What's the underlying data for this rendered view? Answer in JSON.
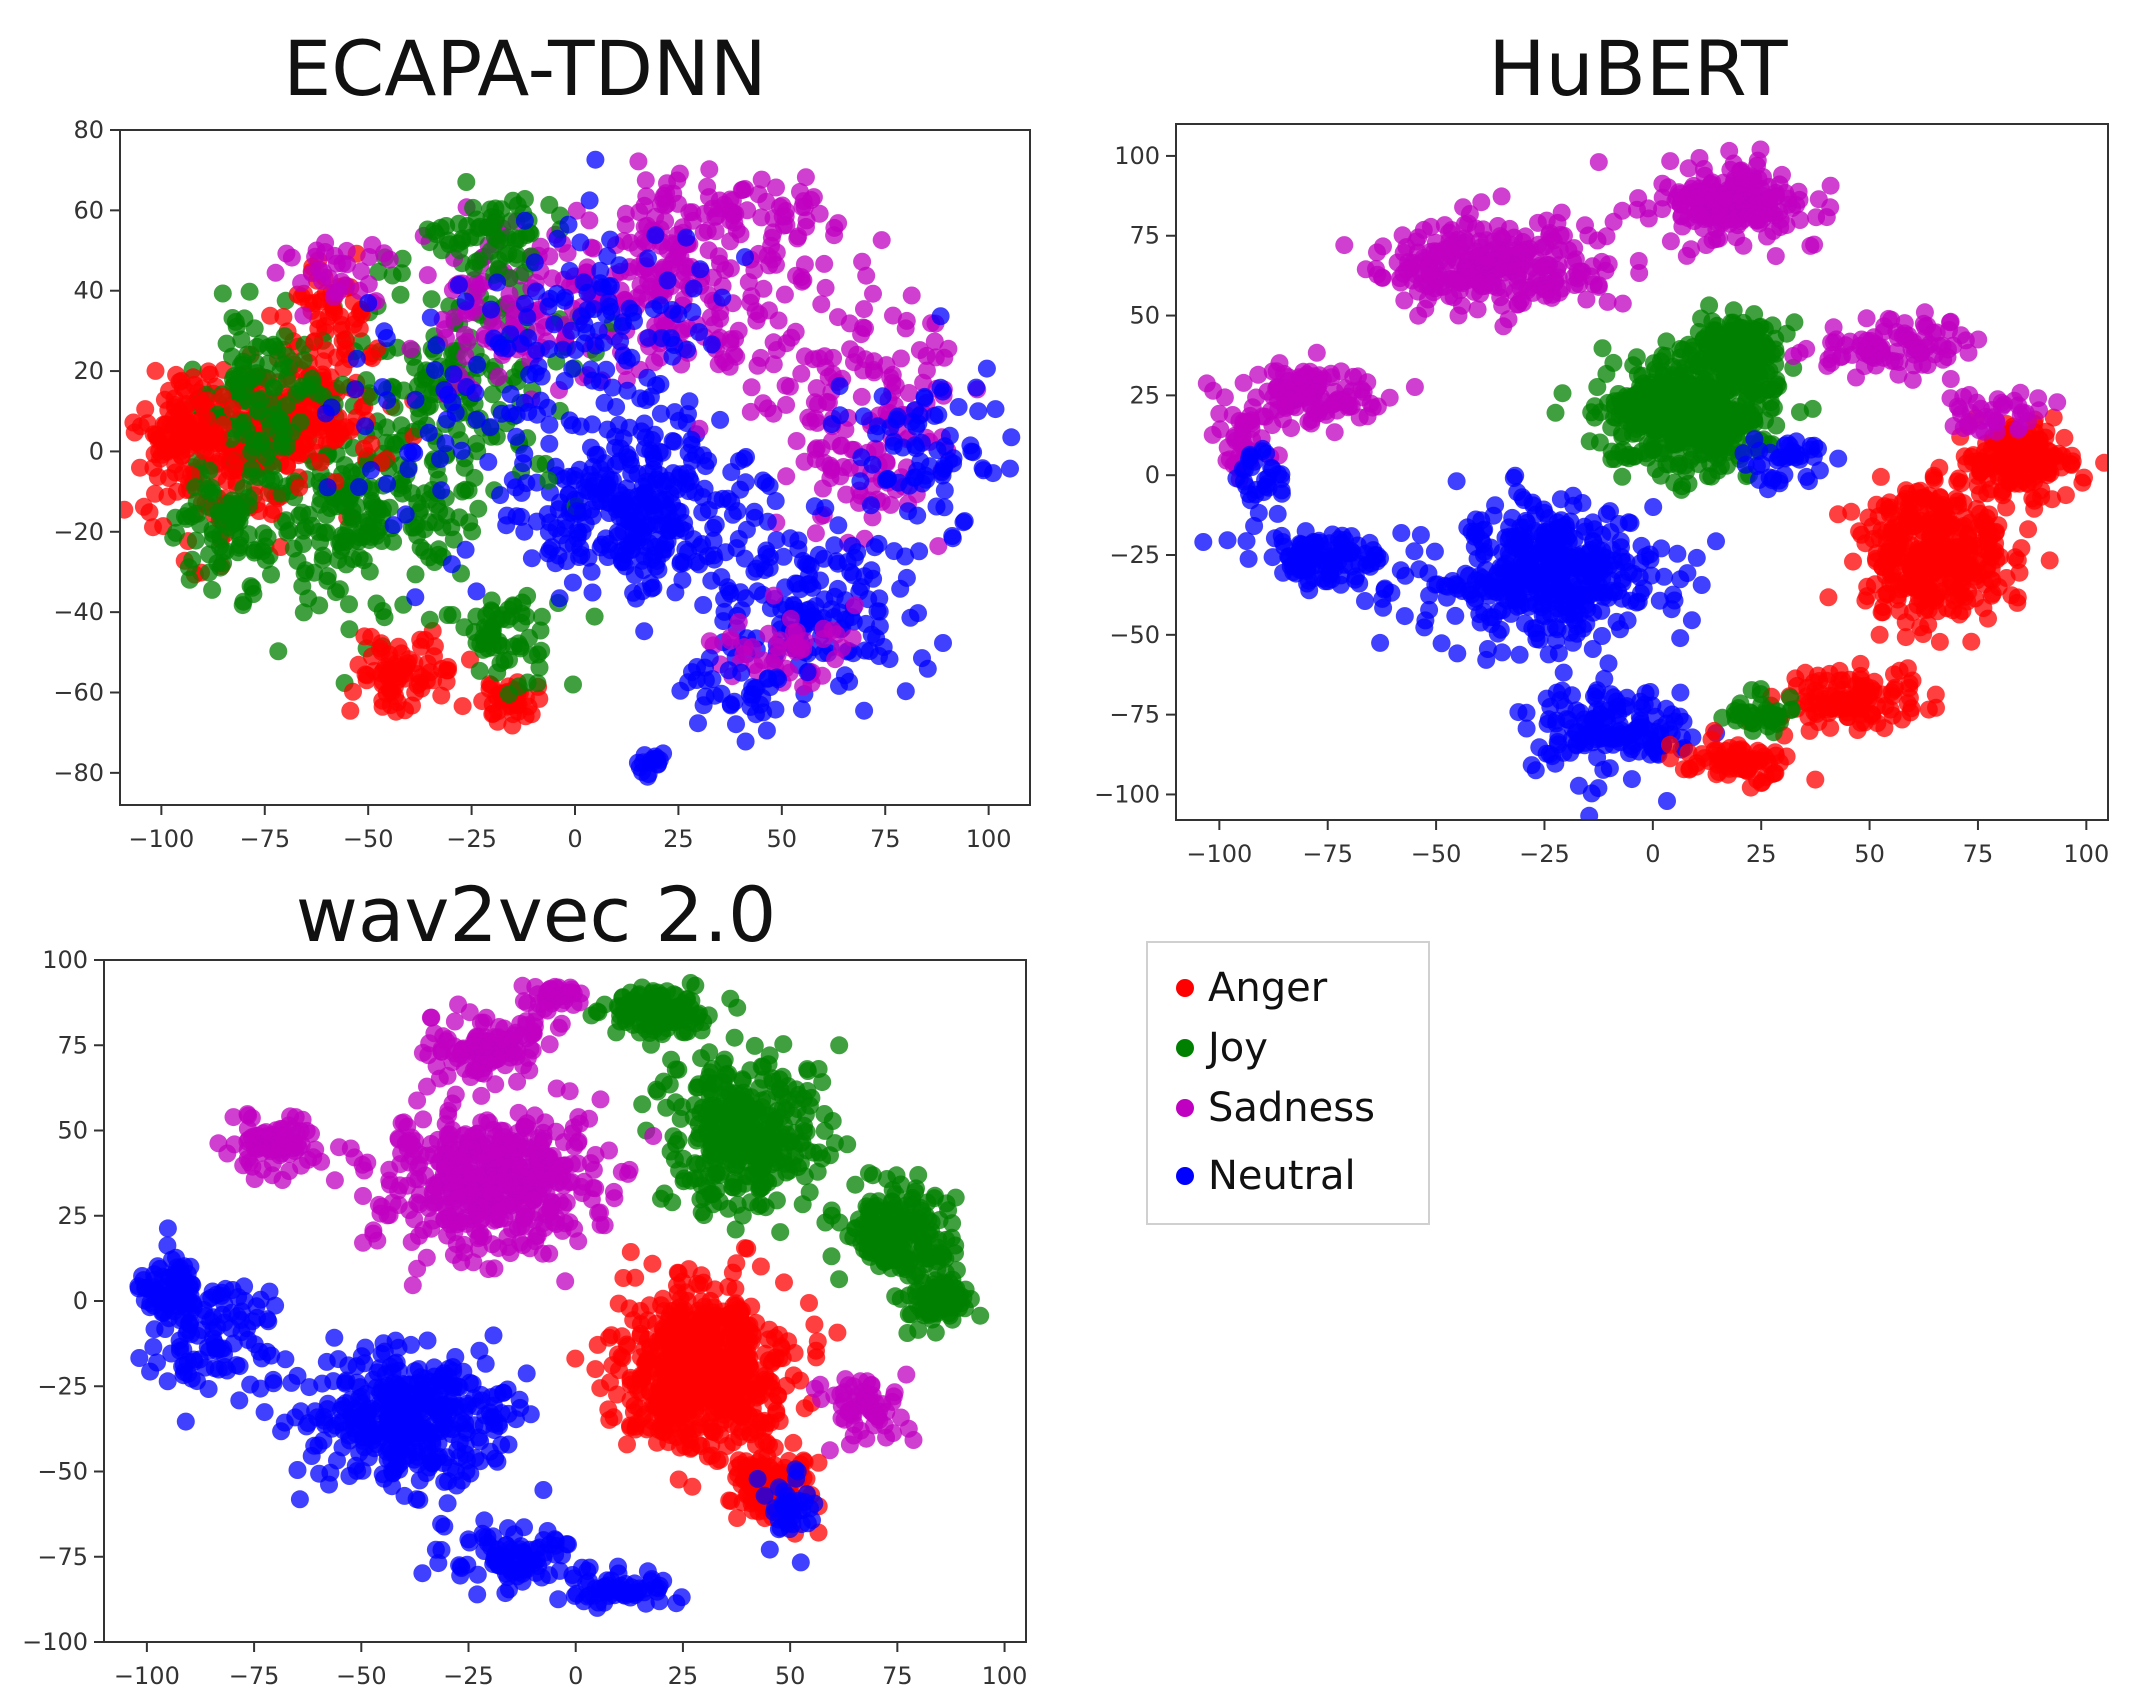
{
  "chart_data": [
    {
      "type": "scatter",
      "title": "ECAPA-TDNN",
      "xlim": [
        -110,
        110
      ],
      "ylim": [
        -88,
        80
      ],
      "xticks": [
        -100,
        -75,
        -50,
        -25,
        0,
        25,
        50,
        75,
        100
      ],
      "yticks": [
        80,
        60,
        40,
        20,
        0,
        -20,
        -40,
        -60,
        -80
      ],
      "grid": false,
      "series": [
        {
          "name": "Anger",
          "color": "#ff0000",
          "clusters": [
            [
              -85,
              0,
              16,
              18,
              0.25
            ],
            [
              -65,
              10,
              14,
              14,
              0.2
            ],
            [
              -40,
              -55,
              12,
              8,
              0.1
            ],
            [
              -15,
              -62,
              6,
              4,
              0.06
            ],
            [
              -95,
              5,
              8,
              10,
              0.1
            ],
            [
              -60,
              35,
              10,
              10,
              0.06
            ]
          ]
        },
        {
          "name": "Joy",
          "color": "#008000",
          "clusters": [
            [
              -55,
              -15,
              26,
              24,
              0.32
            ],
            [
              -30,
              20,
              20,
              22,
              0.2
            ],
            [
              -75,
              15,
              14,
              18,
              0.14
            ],
            [
              -20,
              55,
              12,
              8,
              0.08
            ],
            [
              -15,
              -45,
              14,
              10,
              0.08
            ],
            [
              -85,
              -20,
              10,
              10,
              0.08
            ]
          ]
        },
        {
          "name": "Sadness",
          "color": "#c000c0",
          "clusters": [
            [
              25,
              40,
              30,
              20,
              0.3
            ],
            [
              70,
              10,
              20,
              30,
              0.2
            ],
            [
              -20,
              35,
              18,
              18,
              0.12
            ],
            [
              40,
              60,
              20,
              8,
              0.08
            ],
            [
              50,
              -50,
              14,
              10,
              0.06
            ],
            [
              -55,
              45,
              14,
              8,
              0.04
            ]
          ]
        },
        {
          "name": "Neutral",
          "color": "#0000ff",
          "clusters": [
            [
              15,
              -15,
              22,
              18,
              0.4
            ],
            [
              60,
              -40,
              22,
              18,
              0.2
            ],
            [
              85,
              0,
              14,
              20,
              0.1
            ],
            [
              5,
              30,
              25,
              25,
              0.15
            ],
            [
              18,
              -77,
              3,
              3,
              0.02
            ],
            [
              40,
              -60,
              10,
              8,
              0.05
            ],
            [
              -30,
              0,
              25,
              30,
              0.08
            ]
          ]
        }
      ]
    },
    {
      "type": "scatter",
      "title": "HuBERT",
      "xlim": [
        -110,
        105
      ],
      "ylim": [
        -108,
        110
      ],
      "xticks": [
        -100,
        -75,
        -50,
        -25,
        0,
        25,
        50,
        75,
        100
      ],
      "yticks": [
        100,
        75,
        50,
        25,
        0,
        -25,
        -50,
        -75,
        -100
      ],
      "grid": false,
      "series": [
        {
          "name": "Anger",
          "color": "#ff0000",
          "clusters": [
            [
              65,
              -25,
              14,
              18,
              0.5
            ],
            [
              85,
              5,
              10,
              10,
              0.2
            ],
            [
              45,
              -70,
              14,
              8,
              0.15
            ],
            [
              20,
              -90,
              10,
              6,
              0.1
            ]
          ]
        },
        {
          "name": "Joy",
          "color": "#008000",
          "clusters": [
            [
              8,
              20,
              16,
              14,
              0.7
            ],
            [
              20,
              40,
              8,
              8,
              0.2
            ],
            [
              25,
              -75,
              6,
              6,
              0.05
            ]
          ]
        },
        {
          "name": "Sadness",
          "color": "#c000c0",
          "clusters": [
            [
              -35,
              65,
              22,
              12,
              0.35
            ],
            [
              20,
              85,
              16,
              10,
              0.25
            ],
            [
              -80,
              25,
              14,
              8,
              0.15
            ],
            [
              55,
              40,
              14,
              8,
              0.12
            ],
            [
              -95,
              10,
              5,
              8,
              0.05
            ],
            [
              80,
              20,
              10,
              6,
              0.05
            ]
          ]
        },
        {
          "name": "Neutral",
          "color": "#0000ff",
          "clusters": [
            [
              -25,
              -30,
              22,
              18,
              0.55
            ],
            [
              -75,
              -25,
              14,
              8,
              0.15
            ],
            [
              -10,
              -80,
              16,
              12,
              0.2
            ],
            [
              30,
              5,
              10,
              10,
              0.05
            ],
            [
              -90,
              0,
              6,
              8,
              0.04
            ]
          ]
        }
      ]
    },
    {
      "type": "scatter",
      "title": "wav2vec 2.0",
      "xlim": [
        -110,
        105
      ],
      "ylim": [
        -100,
        100
      ],
      "xticks": [
        -100,
        -75,
        -50,
        -25,
        0,
        25,
        50,
        75,
        100
      ],
      "yticks": [
        100,
        75,
        50,
        25,
        0,
        -25,
        -50,
        -75,
        -100
      ],
      "grid": false,
      "series": [
        {
          "name": "Anger",
          "color": "#ff0000",
          "clusters": [
            [
              30,
              -20,
              16,
              20,
              0.8
            ],
            [
              45,
              -55,
              8,
              8,
              0.15
            ]
          ]
        },
        {
          "name": "Joy",
          "color": "#008000",
          "clusters": [
            [
              40,
              50,
              16,
              18,
              0.45
            ],
            [
              75,
              20,
              10,
              12,
              0.25
            ],
            [
              20,
              85,
              10,
              6,
              0.15
            ],
            [
              85,
              0,
              6,
              8,
              0.1
            ]
          ]
        },
        {
          "name": "Sadness",
          "color": "#c000c0",
          "clusters": [
            [
              -20,
              35,
              22,
              18,
              0.6
            ],
            [
              -20,
              75,
              12,
              8,
              0.15
            ],
            [
              -70,
              45,
              10,
              8,
              0.1
            ],
            [
              68,
              -30,
              8,
              8,
              0.08
            ],
            [
              -5,
              90,
              6,
              4,
              0.05
            ]
          ]
        },
        {
          "name": "Neutral",
          "color": "#0000ff",
          "clusters": [
            [
              -40,
              -35,
              20,
              16,
              0.5
            ],
            [
              -85,
              -10,
              12,
              14,
              0.15
            ],
            [
              -15,
              -75,
              12,
              8,
              0.12
            ],
            [
              -95,
              5,
              5,
              8,
              0.08
            ],
            [
              10,
              -85,
              10,
              4,
              0.08
            ],
            [
              50,
              -60,
              6,
              8,
              0.05
            ]
          ]
        }
      ]
    }
  ],
  "legend": {
    "placement": "center-right",
    "items": [
      {
        "label": "Anger",
        "color": "#ff0000"
      },
      {
        "label": "Joy",
        "color": "#008000"
      },
      {
        "label": "Sadness",
        "color": "#c000c0"
      },
      {
        "label": "Neutral",
        "color": "#0000ff"
      }
    ]
  }
}
